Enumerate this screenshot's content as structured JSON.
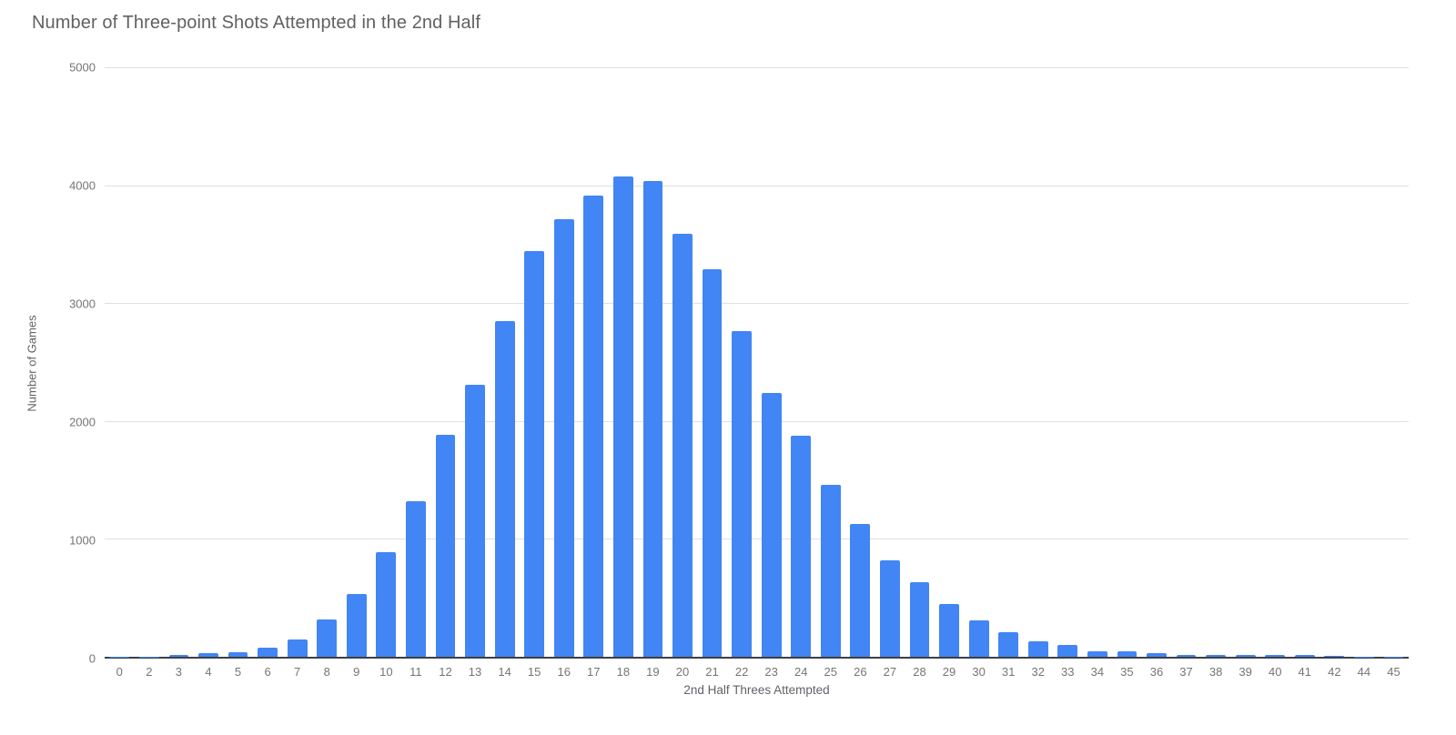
{
  "chart_data": {
    "type": "bar",
    "title": "Number of Three-point Shots Attempted in the 2nd Half",
    "xlabel": "2nd Half Threes Attempted",
    "ylabel": "Number of Games",
    "ylim": [
      0,
      5000
    ],
    "yticks": [
      0,
      1000,
      2000,
      3000,
      4000,
      5000
    ],
    "grid": true,
    "legend": "none",
    "categories": [
      "0",
      "2",
      "3",
      "4",
      "5",
      "6",
      "7",
      "8",
      "9",
      "10",
      "11",
      "12",
      "13",
      "14",
      "15",
      "16",
      "17",
      "18",
      "19",
      "20",
      "21",
      "22",
      "23",
      "24",
      "25",
      "26",
      "27",
      "28",
      "29",
      "30",
      "31",
      "32",
      "33",
      "34",
      "35",
      "36",
      "37",
      "38",
      "39",
      "40",
      "41",
      "42",
      "44",
      "45"
    ],
    "values": [
      2,
      3,
      15,
      30,
      42,
      75,
      150,
      318,
      535,
      885,
      1320,
      1885,
      2305,
      2845,
      3440,
      3710,
      3910,
      4075,
      4035,
      3590,
      3290,
      2760,
      2235,
      1875,
      1455,
      1125,
      820,
      630,
      450,
      305,
      210,
      135,
      100,
      50,
      45,
      30,
      18,
      15,
      14,
      12,
      14,
      4,
      2,
      2
    ],
    "bar_color": "#4285f4",
    "gridline_color": "#e0e0e0",
    "axis_line_color": "#3c4043",
    "title_color": "#616161",
    "tick_label_color": "#757575",
    "axis_title_color": "#5f6368"
  }
}
